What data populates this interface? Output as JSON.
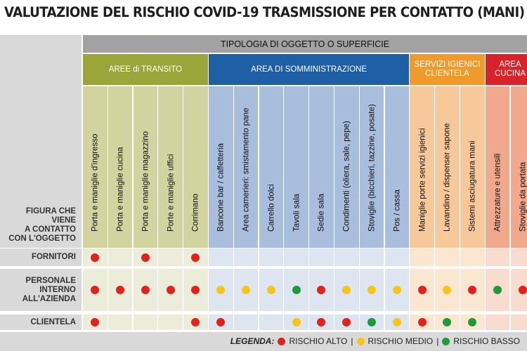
{
  "title": "VALUTAZIONE DEL RISCHIO COVID-19 TRASMISSIONE PER CONTATTO (MANI)",
  "header_top": "TIPOLOGIA DI OGGETTO O SUPERFICIE",
  "corner_label": "FIGURA CHE VIENE A CONTATTO CON L'OGGETTO",
  "colors": {
    "rischio_alto": "#e3211c",
    "rischio_medio": "#f5c518",
    "rischio_basso": "#1f9a3a",
    "group_transito": "#9aa53a",
    "group_somministrazione": "#1f5fa6",
    "group_servizi": "#f09a2c",
    "group_cucina": "#d8232a"
  },
  "groups": [
    {
      "label": "AREE di TRANSITO",
      "span": 5,
      "header_color": "#9aa53a",
      "column_color": "#d2d4a0",
      "row_color": "#ececdb"
    },
    {
      "label": "AREA DI SOMMINISTRAZIONE",
      "span": 8,
      "header_color": "#1f5fa6",
      "column_color": "#a9bedc",
      "row_color": "#dde5f0"
    },
    {
      "label": "SERVIZI IGIENICI CLIENTELA",
      "span": 3,
      "header_color": "#f09a2c",
      "column_color": "#f7c99a",
      "row_color": "#fbe6d2"
    },
    {
      "label": "AREA CUCINA",
      "span": 2,
      "header_color": "#d8232a",
      "column_color": "#f0a98c",
      "row_color": "#f8dcd0"
    }
  ],
  "columns": [
    "Porta e maniglie d'ingresso",
    "Porta e maniglie cucina",
    "Porta e maniglie magazzino",
    "Porte e maniglie uffici",
    "Corrimano",
    "Bancone bar / caffetteria",
    "Area camerieri: smistamento pane",
    "Carrello dolci",
    "Tavoli sala",
    "Sedie sala",
    "Condimenti (oliera, sale, pepe)",
    "Stoviglie (bicchieri, tazzine, posate)",
    "Pos / cassa",
    "Maniglie porte servizi igienici",
    "Lavandino / dispenser sapone",
    "Sistemi asciugatura mani",
    "Attrezzature e utensili",
    "Stoviglie da portata"
  ],
  "chart_data": {
    "type": "table",
    "title": "VALUTAZIONE DEL RISCHIO COVID-19 TRASMISSIONE PER CONTATTO (MANI)",
    "rows": [
      {
        "label": "FORNITORI",
        "values": [
          "alto",
          "",
          "alto",
          "",
          "alto",
          "",
          "",
          "",
          "",
          "",
          "",
          "",
          "",
          "",
          "",
          "",
          "",
          ""
        ]
      },
      {
        "label": "PERSONALE INTERNO ALL'AZIENDA",
        "values": [
          "alto",
          "alto",
          "alto",
          "alto",
          "alto",
          "medio",
          "medio",
          "medio",
          "basso",
          "alto",
          "medio",
          "medio",
          "medio",
          "alto",
          "medio",
          "alto",
          "basso",
          "alto"
        ]
      },
      {
        "label": "CLIENTELA",
        "values": [
          "alto",
          "",
          "",
          "",
          "alto",
          "alto",
          "",
          "",
          "medio",
          "alto",
          "alto",
          "basso",
          "medio",
          "alto",
          "basso",
          "basso",
          "",
          ""
        ]
      }
    ]
  },
  "legend": {
    "title": "LEGENDA:",
    "alto": "RISCHIO ALTO",
    "medio": "RISCHIO MEDIO",
    "basso": "RISCHIO BASSO",
    "separator": "|"
  }
}
